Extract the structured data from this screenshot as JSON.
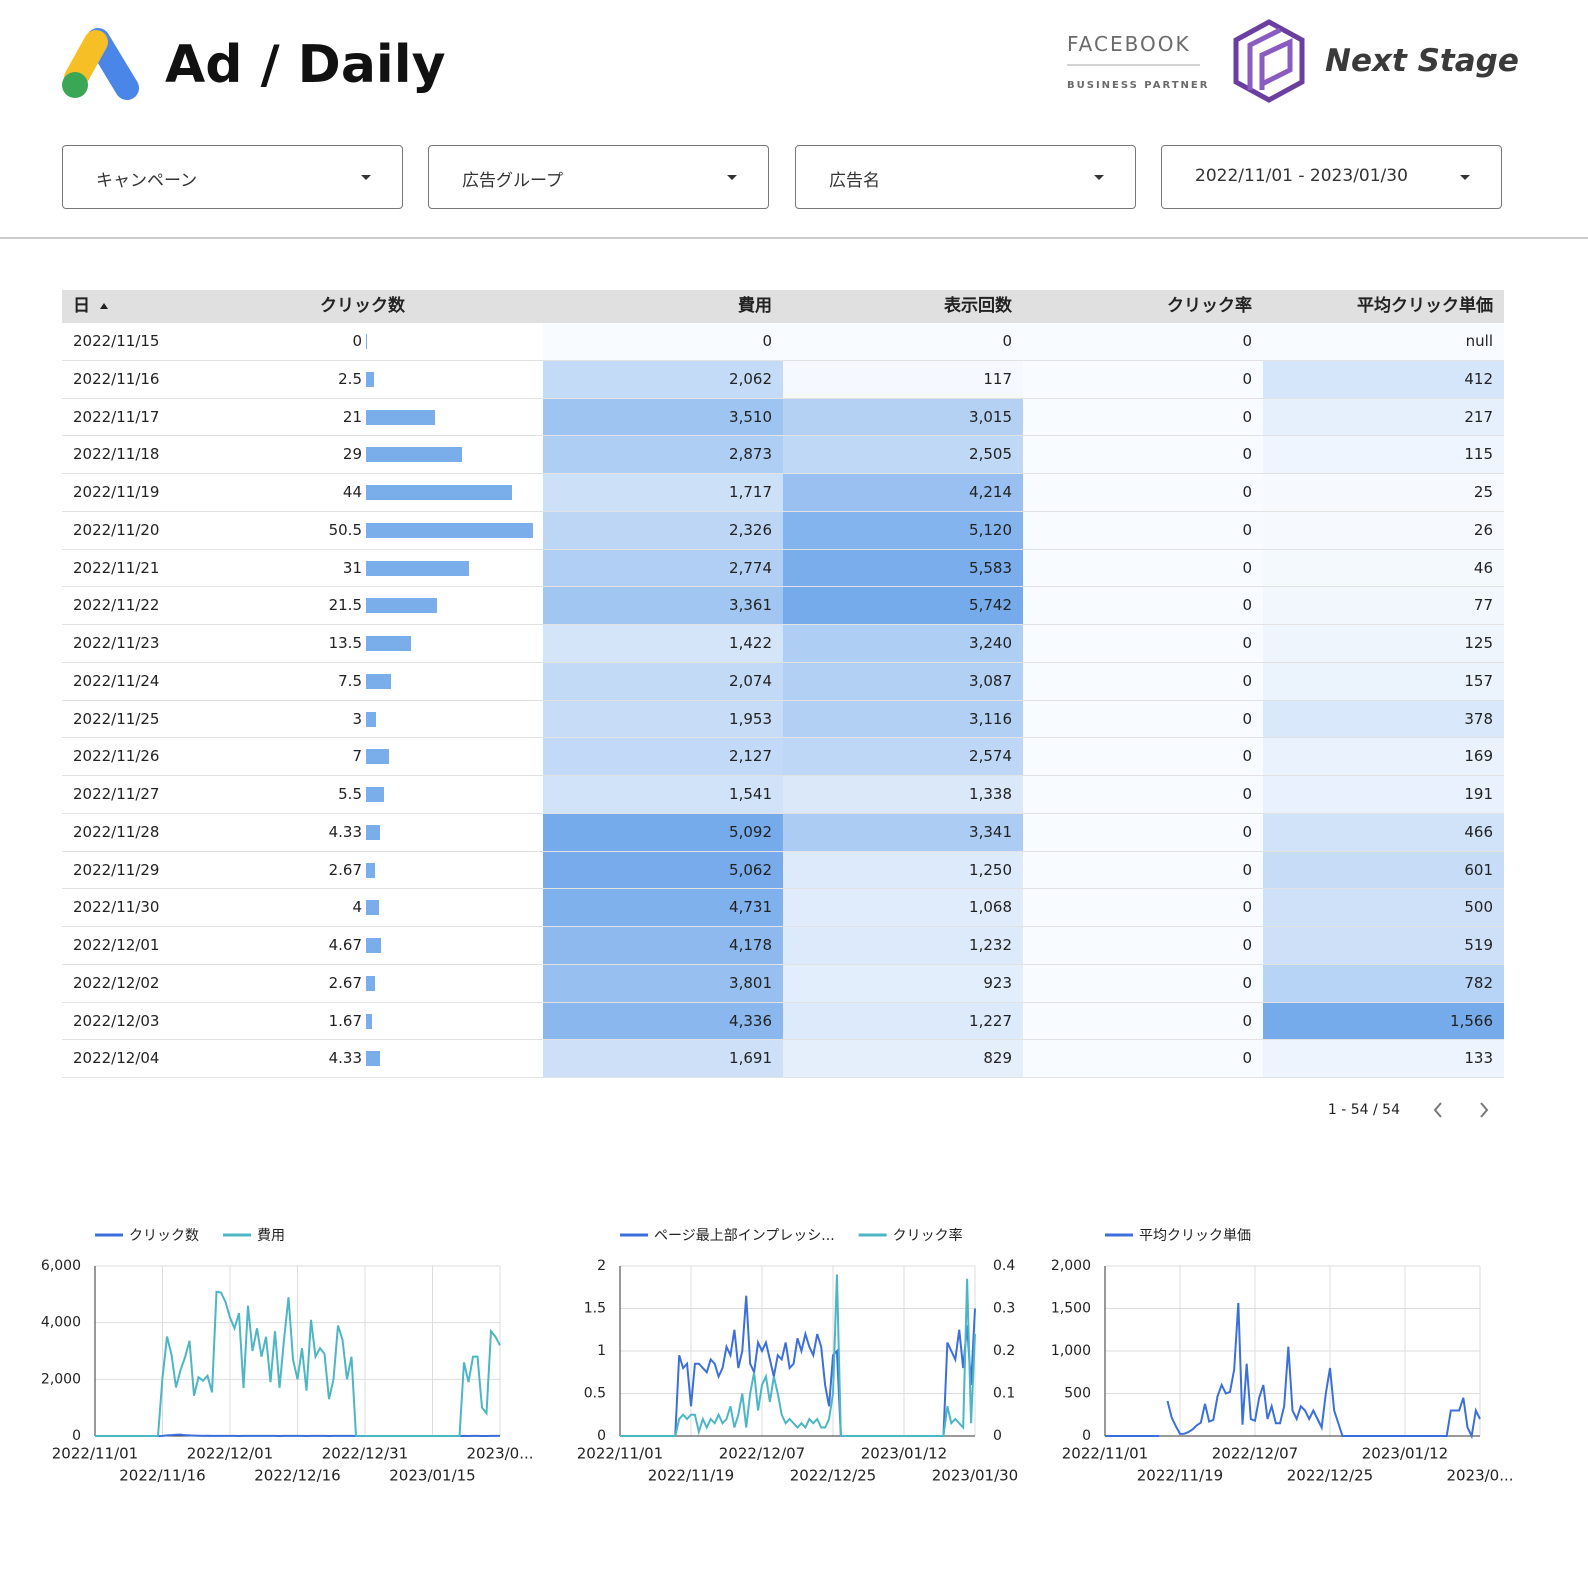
{
  "header": {
    "title": "Ad / Daily",
    "partner_top": "FACEBOOK",
    "partner_bottom": "BUSINESS PARTNER",
    "brand": "Next Stage"
  },
  "filters": [
    "キャンペーン",
    "広告グループ",
    "広告名",
    "2022/11/01 - 2023/01/30"
  ],
  "table": {
    "columns": [
      "日",
      "クリック数",
      "費用",
      "表示回数",
      "クリック率",
      "平均クリック単価"
    ],
    "rows": [
      [
        "2022/11/15",
        0,
        "0",
        "0",
        "0",
        "null"
      ],
      [
        "2022/11/16",
        2.5,
        "2,062",
        "117",
        "0",
        "412"
      ],
      [
        "2022/11/17",
        21,
        "3,510",
        "3,015",
        "0",
        "217"
      ],
      [
        "2022/11/18",
        29,
        "2,873",
        "2,505",
        "0",
        "115"
      ],
      [
        "2022/11/19",
        44,
        "1,717",
        "4,214",
        "0",
        "25"
      ],
      [
        "2022/11/20",
        50.5,
        "2,326",
        "5,120",
        "0",
        "26"
      ],
      [
        "2022/11/21",
        31,
        "2,774",
        "5,583",
        "0",
        "46"
      ],
      [
        "2022/11/22",
        21.5,
        "3,361",
        "5,742",
        "0",
        "77"
      ],
      [
        "2022/11/23",
        13.5,
        "1,422",
        "3,240",
        "0",
        "125"
      ],
      [
        "2022/11/24",
        7.5,
        "2,074",
        "3,087",
        "0",
        "157"
      ],
      [
        "2022/11/25",
        3,
        "1,953",
        "3,116",
        "0",
        "378"
      ],
      [
        "2022/11/26",
        7,
        "2,127",
        "2,574",
        "0",
        "169"
      ],
      [
        "2022/11/27",
        5.5,
        "1,541",
        "1,338",
        "0",
        "191"
      ],
      [
        "2022/11/28",
        4.33,
        "5,092",
        "3,341",
        "0",
        "466"
      ],
      [
        "2022/11/29",
        2.67,
        "5,062",
        "1,250",
        "0",
        "601"
      ],
      [
        "2022/11/30",
        4,
        "4,731",
        "1,068",
        "0",
        "500"
      ],
      [
        "2022/12/01",
        4.67,
        "4,178",
        "1,232",
        "0",
        "519"
      ],
      [
        "2022/12/02",
        2.67,
        "3,801",
        "923",
        "0",
        "782"
      ],
      [
        "2022/12/03",
        1.67,
        "4,336",
        "1,227",
        "0",
        "1,566"
      ],
      [
        "2022/12/04",
        4.33,
        "1,691",
        "829",
        "0",
        "133"
      ]
    ]
  },
  "pagination": "1 - 54 / 54",
  "chart_data": [
    {
      "type": "line",
      "x": [
        "2022/11/01",
        "2022/11/02",
        "2022/11/03",
        "2022/11/04",
        "2022/11/05",
        "2022/11/06",
        "2022/11/07",
        "2022/11/08",
        "2022/11/09",
        "2022/11/10",
        "2022/11/11",
        "2022/11/12",
        "2022/11/13",
        "2022/11/14",
        "2022/11/15",
        "2022/11/16",
        "2022/11/17",
        "2022/11/18",
        "2022/11/19",
        "2022/11/20",
        "2022/11/21",
        "2022/11/22",
        "2022/11/23",
        "2022/11/24",
        "2022/11/25",
        "2022/11/26",
        "2022/11/27",
        "2022/11/28",
        "2022/11/29",
        "2022/11/30",
        "2022/12/01",
        "2022/12/02",
        "2022/12/03",
        "2022/12/04",
        "2022/12/05",
        "2022/12/06",
        "2022/12/07",
        "2022/12/08",
        "2022/12/09",
        "2022/12/10",
        "2022/12/11",
        "2022/12/12",
        "2022/12/13",
        "2022/12/14",
        "2022/12/15",
        "2022/12/16",
        "2022/12/17",
        "2022/12/18",
        "2022/12/19",
        "2022/12/20",
        "2022/12/21",
        "2022/12/22",
        "2022/12/23",
        "2022/12/24",
        "2022/12/25",
        "2022/12/26",
        "2022/12/27",
        "2022/12/28",
        "2022/12/29",
        "2022/12/30",
        "2022/12/31",
        "2023/01/01",
        "2023/01/02",
        "2023/01/03",
        "2023/01/04",
        "2023/01/05",
        "2023/01/06",
        "2023/01/07",
        "2023/01/08",
        "2023/01/09",
        "2023/01/10",
        "2023/01/11",
        "2023/01/12",
        "2023/01/13",
        "2023/01/14",
        "2023/01/15",
        "2023/01/16",
        "2023/01/17",
        "2023/01/18",
        "2023/01/19",
        "2023/01/20",
        "2023/01/21",
        "2023/01/22",
        "2023/01/23",
        "2023/01/24",
        "2023/01/25",
        "2023/01/26",
        "2023/01/27",
        "2023/01/28",
        "2023/01/29",
        "2023/01/30"
      ],
      "series": [
        {
          "name": "クリック数",
          "color": "#3b6fdc",
          "values": [
            0,
            0,
            0,
            0,
            0,
            0,
            0,
            0,
            0,
            0,
            0,
            0,
            0,
            0,
            0,
            2.5,
            21,
            29,
            44,
            50.5,
            31,
            21.5,
            13.5,
            7.5,
            3,
            7,
            5.5,
            4.33,
            2.67,
            4,
            4.67,
            2.67,
            1.67,
            4.33,
            5,
            4,
            6,
            3,
            4,
            3,
            5,
            2,
            4,
            6,
            3,
            3,
            4,
            2,
            5,
            3,
            4,
            3,
            2,
            3,
            5,
            4,
            3,
            4,
            0,
            0,
            0,
            0,
            0,
            0,
            0,
            0,
            0,
            0,
            0,
            0,
            0,
            0,
            0,
            0,
            0,
            0,
            0,
            0,
            0,
            0,
            0,
            0,
            3,
            2,
            3,
            3,
            1,
            1,
            4,
            4,
            3
          ]
        },
        {
          "name": "費用",
          "color": "#4db6c4",
          "values": [
            0,
            0,
            0,
            0,
            0,
            0,
            0,
            0,
            0,
            0,
            0,
            0,
            0,
            0,
            0,
            2062,
            3510,
            2873,
            1717,
            2326,
            2774,
            3361,
            1422,
            2074,
            1953,
            2127,
            1541,
            5092,
            5062,
            4731,
            4178,
            3801,
            4336,
            1691,
            4600,
            3000,
            3800,
            2800,
            3500,
            1900,
            3700,
            1700,
            3400,
            4900,
            2700,
            2000,
            3100,
            1600,
            4100,
            2800,
            3100,
            2900,
            1300,
            2000,
            3900,
            3400,
            2000,
            2800,
            0,
            0,
            0,
            0,
            0,
            0,
            0,
            0,
            0,
            0,
            0,
            0,
            0,
            0,
            0,
            0,
            0,
            0,
            0,
            0,
            0,
            0,
            0,
            0,
            2600,
            1900,
            2800,
            2800,
            1000,
            800,
            3700,
            3500,
            3200
          ]
        }
      ],
      "ylim": [
        0,
        6000
      ],
      "yticks": [
        0,
        {
          "value": 2000,
          "label": "2,000"
        },
        {
          "value": 4000,
          "label": "4,000"
        },
        {
          "value": 6000,
          "label": "6,000"
        }
      ],
      "xticks": [
        "2022/11/01",
        "2022/11/16",
        "2022/12/01",
        "2022/12/16",
        "2022/12/31",
        "2023/01/15",
        {
          "value": "2023/01/30",
          "label": "2023/0..."
        }
      ],
      "grid": true
    },
    {
      "type": "line",
      "x": [
        "2022/11/01",
        "2022/11/02",
        "2022/11/03",
        "2022/11/04",
        "2022/11/05",
        "2022/11/06",
        "2022/11/07",
        "2022/11/08",
        "2022/11/09",
        "2022/11/10",
        "2022/11/11",
        "2022/11/12",
        "2022/11/13",
        "2022/11/14",
        "2022/11/15",
        "2022/11/16",
        "2022/11/17",
        "2022/11/18",
        "2022/11/19",
        "2022/11/20",
        "2022/11/21",
        "2022/11/22",
        "2022/11/23",
        "2022/11/24",
        "2022/11/25",
        "2022/11/26",
        "2022/11/27",
        "2022/11/28",
        "2022/11/29",
        "2022/11/30",
        "2022/12/01",
        "2022/12/02",
        "2022/12/03",
        "2022/12/04",
        "2022/12/05",
        "2022/12/06",
        "2022/12/07",
        "2022/12/08",
        "2022/12/09",
        "2022/12/10",
        "2022/12/11",
        "2022/12/12",
        "2022/12/13",
        "2022/12/14",
        "2022/12/15",
        "2022/12/16",
        "2022/12/17",
        "2022/12/18",
        "2022/12/19",
        "2022/12/20",
        "2022/12/21",
        "2022/12/22",
        "2022/12/23",
        "2022/12/24",
        "2022/12/25",
        "2022/12/26",
        "2022/12/27",
        "2022/12/28",
        "2022/12/29",
        "2022/12/30",
        "2022/12/31",
        "2023/01/01",
        "2023/01/02",
        "2023/01/03",
        "2023/01/04",
        "2023/01/05",
        "2023/01/06",
        "2023/01/07",
        "2023/01/08",
        "2023/01/09",
        "2023/01/10",
        "2023/01/11",
        "2023/01/12",
        "2023/01/13",
        "2023/01/14",
        "2023/01/15",
        "2023/01/16",
        "2023/01/17",
        "2023/01/18",
        "2023/01/19",
        "2023/01/20",
        "2023/01/21",
        "2023/01/22",
        "2023/01/23",
        "2023/01/24",
        "2023/01/25",
        "2023/01/26",
        "2023/01/27",
        "2023/01/28",
        "2023/01/29",
        "2023/01/30"
      ],
      "series": [
        {
          "name": "ページ最上部インプレッシ...",
          "color": "#3b6fdc",
          "values": [
            0,
            0,
            0,
            0,
            0,
            0,
            0,
            0,
            0,
            0,
            0,
            0,
            0,
            0,
            0,
            0.95,
            0.8,
            0.85,
            0.35,
            0.85,
            0.85,
            0.8,
            0.75,
            0.9,
            0.85,
            0.7,
            0.8,
            1.05,
            0.95,
            1.25,
            0.8,
            1.0,
            1.65,
            0.85,
            0.75,
            1.1,
            1.0,
            1.1,
            0.9,
            0.7,
            0.95,
            0.9,
            1.1,
            0.8,
            0.85,
            1.15,
            1.0,
            1.2,
            1.05,
            0.95,
            1.2,
            1.05,
            0.6,
            0.35,
            0.95,
            1.0,
            0,
            0,
            0,
            0,
            0,
            0,
            0,
            0,
            0,
            0,
            0,
            0,
            0,
            0,
            0,
            0,
            0,
            0,
            0,
            0,
            0,
            0,
            0,
            0,
            0,
            0,
            0,
            1.1,
            1.0,
            0.9,
            1.25,
            0.8,
            1.3,
            0.6,
            1.5
          ]
        },
        {
          "name": "クリック率",
          "color": "#4db6c4",
          "axis": "y2",
          "values": [
            0,
            0,
            0,
            0,
            0,
            0,
            0,
            0,
            0,
            0,
            0,
            0,
            0,
            0,
            0,
            0.04,
            0.05,
            0.04,
            0.05,
            0.05,
            0.01,
            0.04,
            0.02,
            0.04,
            0.03,
            0.05,
            0.03,
            0.04,
            0.07,
            0.02,
            0.05,
            0.1,
            0.02,
            0.1,
            0.15,
            0.06,
            0.12,
            0.14,
            0.08,
            0.14,
            0.1,
            0.05,
            0.03,
            0.04,
            0.03,
            0.02,
            0.03,
            0.02,
            0.04,
            0.03,
            0.04,
            0.02,
            0.02,
            0.04,
            0.1,
            0.38,
            0,
            0,
            0,
            0,
            0,
            0,
            0,
            0,
            0,
            0,
            0,
            0,
            0,
            0,
            0,
            0,
            0,
            0,
            0,
            0,
            0,
            0,
            0,
            0,
            0,
            0,
            0,
            0.07,
            0.03,
            0.04,
            0.03,
            0.02,
            0.37,
            0.03,
            0.24
          ]
        }
      ],
      "ylim": [
        0,
        2
      ],
      "yticks": [
        0,
        0.5,
        1,
        1.5,
        2
      ],
      "y2lim": [
        0,
        0.4
      ],
      "y2ticks": [
        0,
        0.1,
        0.2,
        0.3,
        0.4
      ],
      "xticks": [
        "2022/11/01",
        "2022/11/19",
        "2022/12/07",
        "2022/12/25",
        "2023/01/12",
        "2023/01/30"
      ],
      "grid": true
    },
    {
      "type": "line",
      "x": [
        "2022/11/01",
        "2022/11/02",
        "2022/11/03",
        "2022/11/04",
        "2022/11/05",
        "2022/11/06",
        "2022/11/07",
        "2022/11/08",
        "2022/11/09",
        "2022/11/10",
        "2022/11/11",
        "2022/11/12",
        "2022/11/13",
        "2022/11/14",
        "2022/11/15",
        "2022/11/16",
        "2022/11/17",
        "2022/11/18",
        "2022/11/19",
        "2022/11/20",
        "2022/11/21",
        "2022/11/22",
        "2022/11/23",
        "2022/11/24",
        "2022/11/25",
        "2022/11/26",
        "2022/11/27",
        "2022/11/28",
        "2022/11/29",
        "2022/11/30",
        "2022/12/01",
        "2022/12/02",
        "2022/12/03",
        "2022/12/04",
        "2022/12/05",
        "2022/12/06",
        "2022/12/07",
        "2022/12/08",
        "2022/12/09",
        "2022/12/10",
        "2022/12/11",
        "2022/12/12",
        "2022/12/13",
        "2022/12/14",
        "2022/12/15",
        "2022/12/16",
        "2022/12/17",
        "2022/12/18",
        "2022/12/19",
        "2022/12/20",
        "2022/12/21",
        "2022/12/22",
        "2022/12/23",
        "2022/12/24",
        "2022/12/25",
        "2022/12/26",
        "2022/12/27",
        "2022/12/28",
        "2022/12/29",
        "2022/12/30",
        "2022/12/31",
        "2023/01/01",
        "2023/01/02",
        "2023/01/03",
        "2023/01/04",
        "2023/01/05",
        "2023/01/06",
        "2023/01/07",
        "2023/01/08",
        "2023/01/09",
        "2023/01/10",
        "2023/01/11",
        "2023/01/12",
        "2023/01/13",
        "2023/01/14",
        "2023/01/15",
        "2023/01/16",
        "2023/01/17",
        "2023/01/18",
        "2023/01/19",
        "2023/01/20",
        "2023/01/21",
        "2023/01/22",
        "2023/01/23",
        "2023/01/24",
        "2023/01/25",
        "2023/01/26",
        "2023/01/27",
        "2023/01/28",
        "2023/01/29",
        "2023/01/30"
      ],
      "series": [
        {
          "name": "平均クリック単価",
          "color": "#3b6fdc",
          "values": [
            0,
            0,
            0,
            0,
            0,
            0,
            0,
            0,
            0,
            0,
            0,
            0,
            0,
            0,
            null,
            412,
            217,
            115,
            25,
            26,
            46,
            77,
            125,
            157,
            378,
            169,
            191,
            466,
            601,
            500,
            519,
            782,
            1566,
            133,
            850,
            200,
            180,
            450,
            600,
            200,
            350,
            150,
            150,
            350,
            1050,
            300,
            200,
            350,
            300,
            200,
            300,
            200,
            100,
            500,
            800,
            300,
            150,
            0,
            0,
            0,
            0,
            0,
            0,
            0,
            0,
            0,
            0,
            0,
            0,
            0,
            0,
            0,
            0,
            0,
            0,
            0,
            0,
            0,
            0,
            0,
            0,
            0,
            0,
            300,
            300,
            300,
            450,
            100,
            0,
            300,
            200
          ]
        }
      ],
      "ylim": [
        0,
        2000
      ],
      "yticks": [
        0,
        500,
        {
          "value": 1000,
          "label": "1,000"
        },
        {
          "value": 1500,
          "label": "1,500"
        },
        {
          "value": 2000,
          "label": "2,000"
        }
      ],
      "xticks": [
        "2022/11/01",
        "2022/11/19",
        "2022/12/07",
        "2022/12/25",
        "2023/01/12",
        {
          "value": "2023/01/30",
          "label": "2023/0..."
        }
      ],
      "grid": true
    }
  ]
}
